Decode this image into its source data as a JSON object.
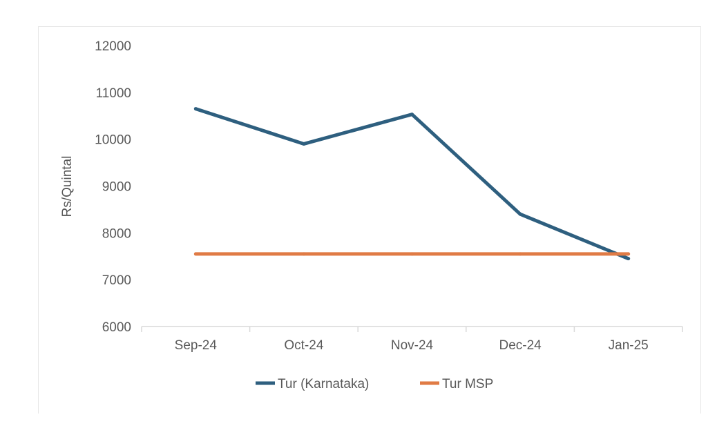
{
  "chart_data": {
    "type": "line",
    "title": "",
    "xlabel": "",
    "ylabel": "Rs/Quintal",
    "categories": [
      "Sep-24",
      "Oct-24",
      "Nov-24",
      "Dec-24",
      "Jan-25"
    ],
    "ylim": [
      6000,
      12000
    ],
    "yticks": [
      6000,
      7000,
      8000,
      9000,
      10000,
      11000,
      12000
    ],
    "grid": false,
    "legend_position": "bottom",
    "series": [
      {
        "name": "Tur (Karnataka)",
        "color": "#2e5f7f",
        "values": [
          10650,
          9900,
          10530,
          8400,
          7450
        ]
      },
      {
        "name": "Tur MSP",
        "color": "#e07b45",
        "values": [
          7550,
          7550,
          7550,
          7550,
          7550
        ]
      }
    ]
  }
}
